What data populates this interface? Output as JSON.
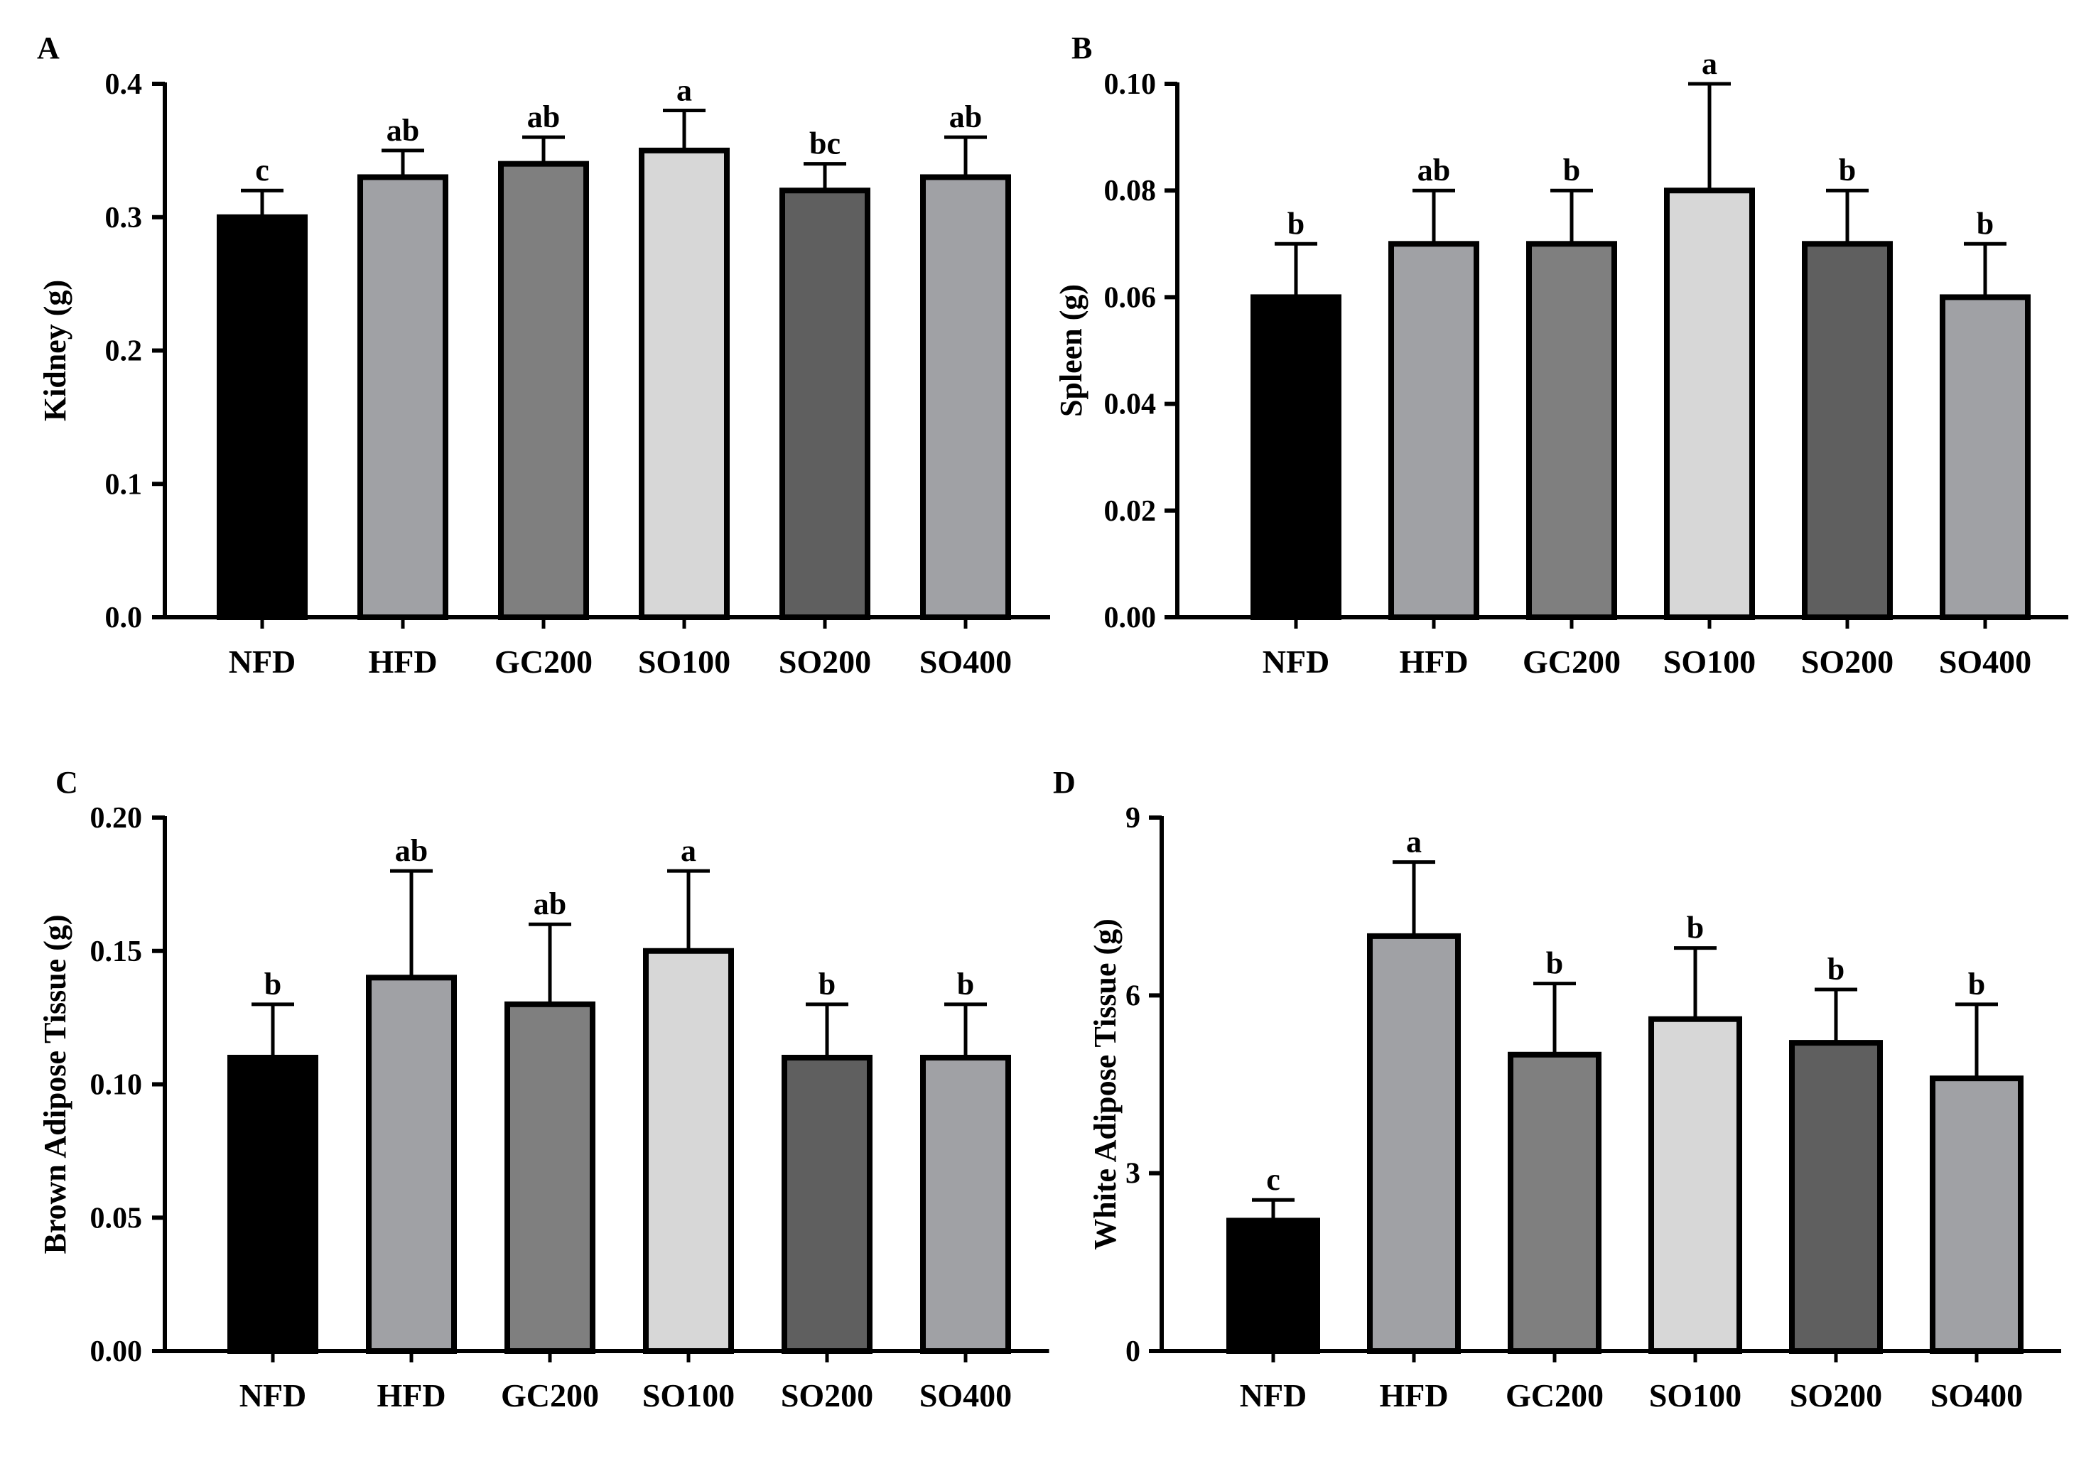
{
  "chart_data": [
    {
      "type": "bar",
      "panel": "A",
      "ylabel": "Kidney (g)",
      "categories": [
        "NFD",
        "HFD",
        "GC200",
        "SO100",
        "SO200",
        "SO400"
      ],
      "values": [
        0.3,
        0.33,
        0.34,
        0.35,
        0.32,
        0.33
      ],
      "errors": [
        0.02,
        0.02,
        0.02,
        0.03,
        0.02,
        0.03
      ],
      "significance": [
        "c",
        "ab",
        "ab",
        "a",
        "bc",
        "ab"
      ],
      "ylim": [
        0,
        0.4
      ],
      "yticks": [
        0.0,
        0.1,
        0.2,
        0.3,
        0.4
      ],
      "ytick_labels": [
        "0.0",
        "0.1",
        "0.2",
        "0.3",
        "0.4"
      ]
    },
    {
      "type": "bar",
      "panel": "B",
      "ylabel": "Spleen (g)",
      "categories": [
        "NFD",
        "HFD",
        "GC200",
        "SO100",
        "SO200",
        "SO400"
      ],
      "values": [
        0.06,
        0.07,
        0.07,
        0.08,
        0.07,
        0.06
      ],
      "errors": [
        0.01,
        0.01,
        0.01,
        0.02,
        0.01,
        0.01
      ],
      "significance": [
        "b",
        "ab",
        "b",
        "a",
        "b",
        "b"
      ],
      "ylim": [
        0,
        0.1
      ],
      "yticks": [
        0.0,
        0.02,
        0.04,
        0.06,
        0.08,
        0.1
      ],
      "ytick_labels": [
        "0.00",
        "0.02",
        "0.04",
        "0.06",
        "0.08",
        "0.10"
      ]
    },
    {
      "type": "bar",
      "panel": "C",
      "ylabel": "Brown Adipose Tissue (g)",
      "categories": [
        "NFD",
        "HFD",
        "GC200",
        "SO100",
        "SO200",
        "SO400"
      ],
      "values": [
        0.11,
        0.14,
        0.13,
        0.15,
        0.11,
        0.11
      ],
      "errors": [
        0.02,
        0.04,
        0.03,
        0.03,
        0.02,
        0.02
      ],
      "significance": [
        "b",
        "ab",
        "ab",
        "a",
        "b",
        "b"
      ],
      "ylim": [
        0,
        0.2
      ],
      "yticks": [
        0.0,
        0.05,
        0.1,
        0.15,
        0.2
      ],
      "ytick_labels": [
        "0.00",
        "0.05",
        "0.10",
        "0.15",
        "0.20"
      ]
    },
    {
      "type": "bar",
      "panel": "D",
      "ylabel": "White Adipose Tissue (g)",
      "categories": [
        "NFD",
        "HFD",
        "GC200",
        "SO100",
        "SO200",
        "SO400"
      ],
      "values": [
        2.2,
        7.0,
        5.0,
        5.6,
        5.2,
        4.6
      ],
      "errors": [
        0.35,
        1.25,
        1.2,
        1.2,
        0.9,
        1.25
      ],
      "significance": [
        "c",
        "a",
        "b",
        "b",
        "b",
        "b"
      ],
      "ylim": [
        0,
        9
      ],
      "yticks": [
        0,
        3,
        6,
        9
      ],
      "ytick_labels": [
        "0",
        "3",
        "6",
        "9"
      ]
    }
  ],
  "colors": {
    "bars": [
      "#000000",
      "#a0a1a5",
      "#7f7f7f",
      "#d7d7d7",
      "#5f5f5f",
      "#a0a1a5"
    ],
    "axis": "#000000"
  }
}
